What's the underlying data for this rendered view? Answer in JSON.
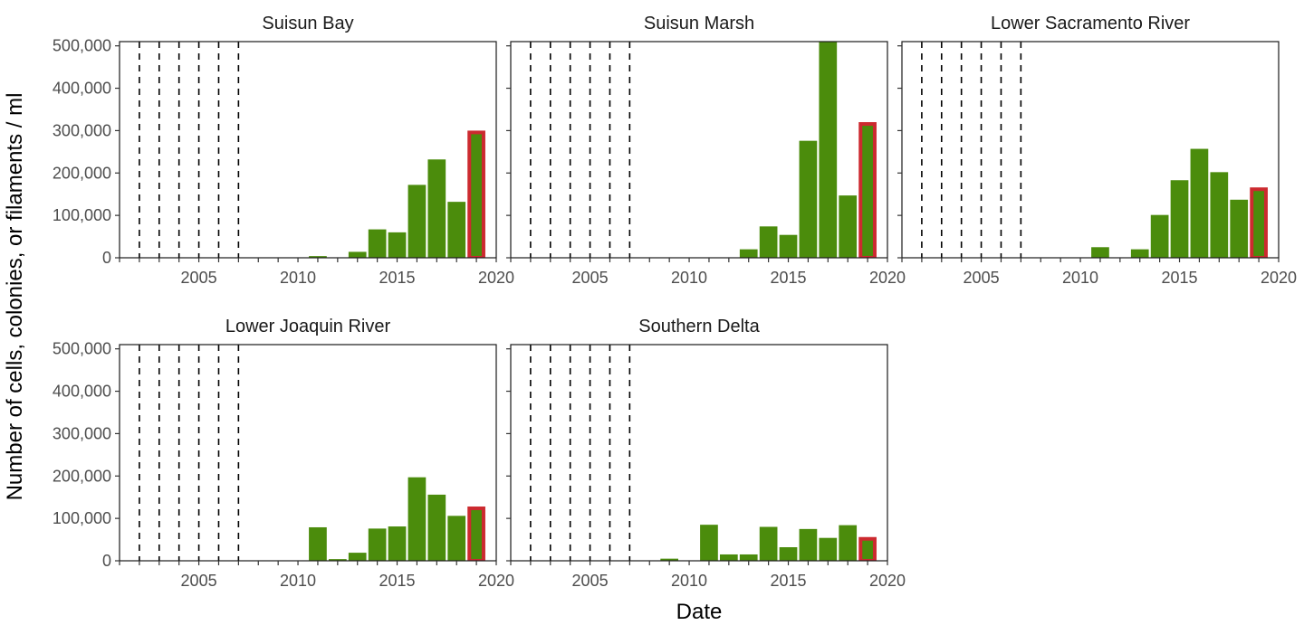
{
  "chart_data": {
    "type": "bar",
    "xlabel": "Date",
    "ylabel": "Number of cells, colonies, or filaments / ml",
    "xlim": [
      2001,
      2020
    ],
    "ylim": [
      0,
      510000
    ],
    "x_ticks": [
      2005,
      2010,
      2015,
      2020
    ],
    "x_tick_labels": [
      "2005",
      "2010",
      "2015",
      "2020"
    ],
    "y_ticks": [
      0,
      100000,
      200000,
      300000,
      400000,
      500000
    ],
    "y_tick_labels": [
      "0",
      "100,000",
      "200,000",
      "300,000",
      "400,000",
      "500,000"
    ],
    "reference_lines_x": [
      2002,
      2003,
      2004,
      2005,
      2006,
      2007
    ],
    "bar_color": "#4b8c0c",
    "highlight_year": 2019,
    "highlight_color": "#cc2a2f",
    "grid": false,
    "panels": [
      {
        "title": "Suisun Bay",
        "x": [
          2011,
          2013,
          2014,
          2015,
          2016,
          2017,
          2018,
          2019
        ],
        "values": [
          4000,
          14000,
          67000,
          60000,
          172000,
          232000,
          132000,
          300000
        ]
      },
      {
        "title": "Suisun Marsh",
        "x": [
          2013,
          2014,
          2015,
          2016,
          2017,
          2018,
          2019
        ],
        "values": [
          20000,
          74000,
          54000,
          276000,
          510000,
          147000,
          320000
        ]
      },
      {
        "title": "Lower Sacramento River",
        "x": [
          2011,
          2013,
          2014,
          2015,
          2016,
          2017,
          2018,
          2019
        ],
        "values": [
          25000,
          20000,
          101000,
          183000,
          257000,
          202000,
          137000,
          166000
        ]
      },
      {
        "title": "Lower Joaquin River",
        "x": [
          2011,
          2012,
          2013,
          2014,
          2015,
          2016,
          2017,
          2018,
          2019
        ],
        "values": [
          79000,
          4000,
          19000,
          76000,
          81000,
          197000,
          156000,
          106000,
          128000
        ]
      },
      {
        "title": "Southern Delta",
        "x": [
          2009,
          2011,
          2012,
          2013,
          2014,
          2015,
          2016,
          2017,
          2018,
          2019
        ],
        "values": [
          5000,
          85000,
          15000,
          15000,
          80000,
          32000,
          75000,
          54000,
          84000,
          56000
        ]
      }
    ]
  }
}
